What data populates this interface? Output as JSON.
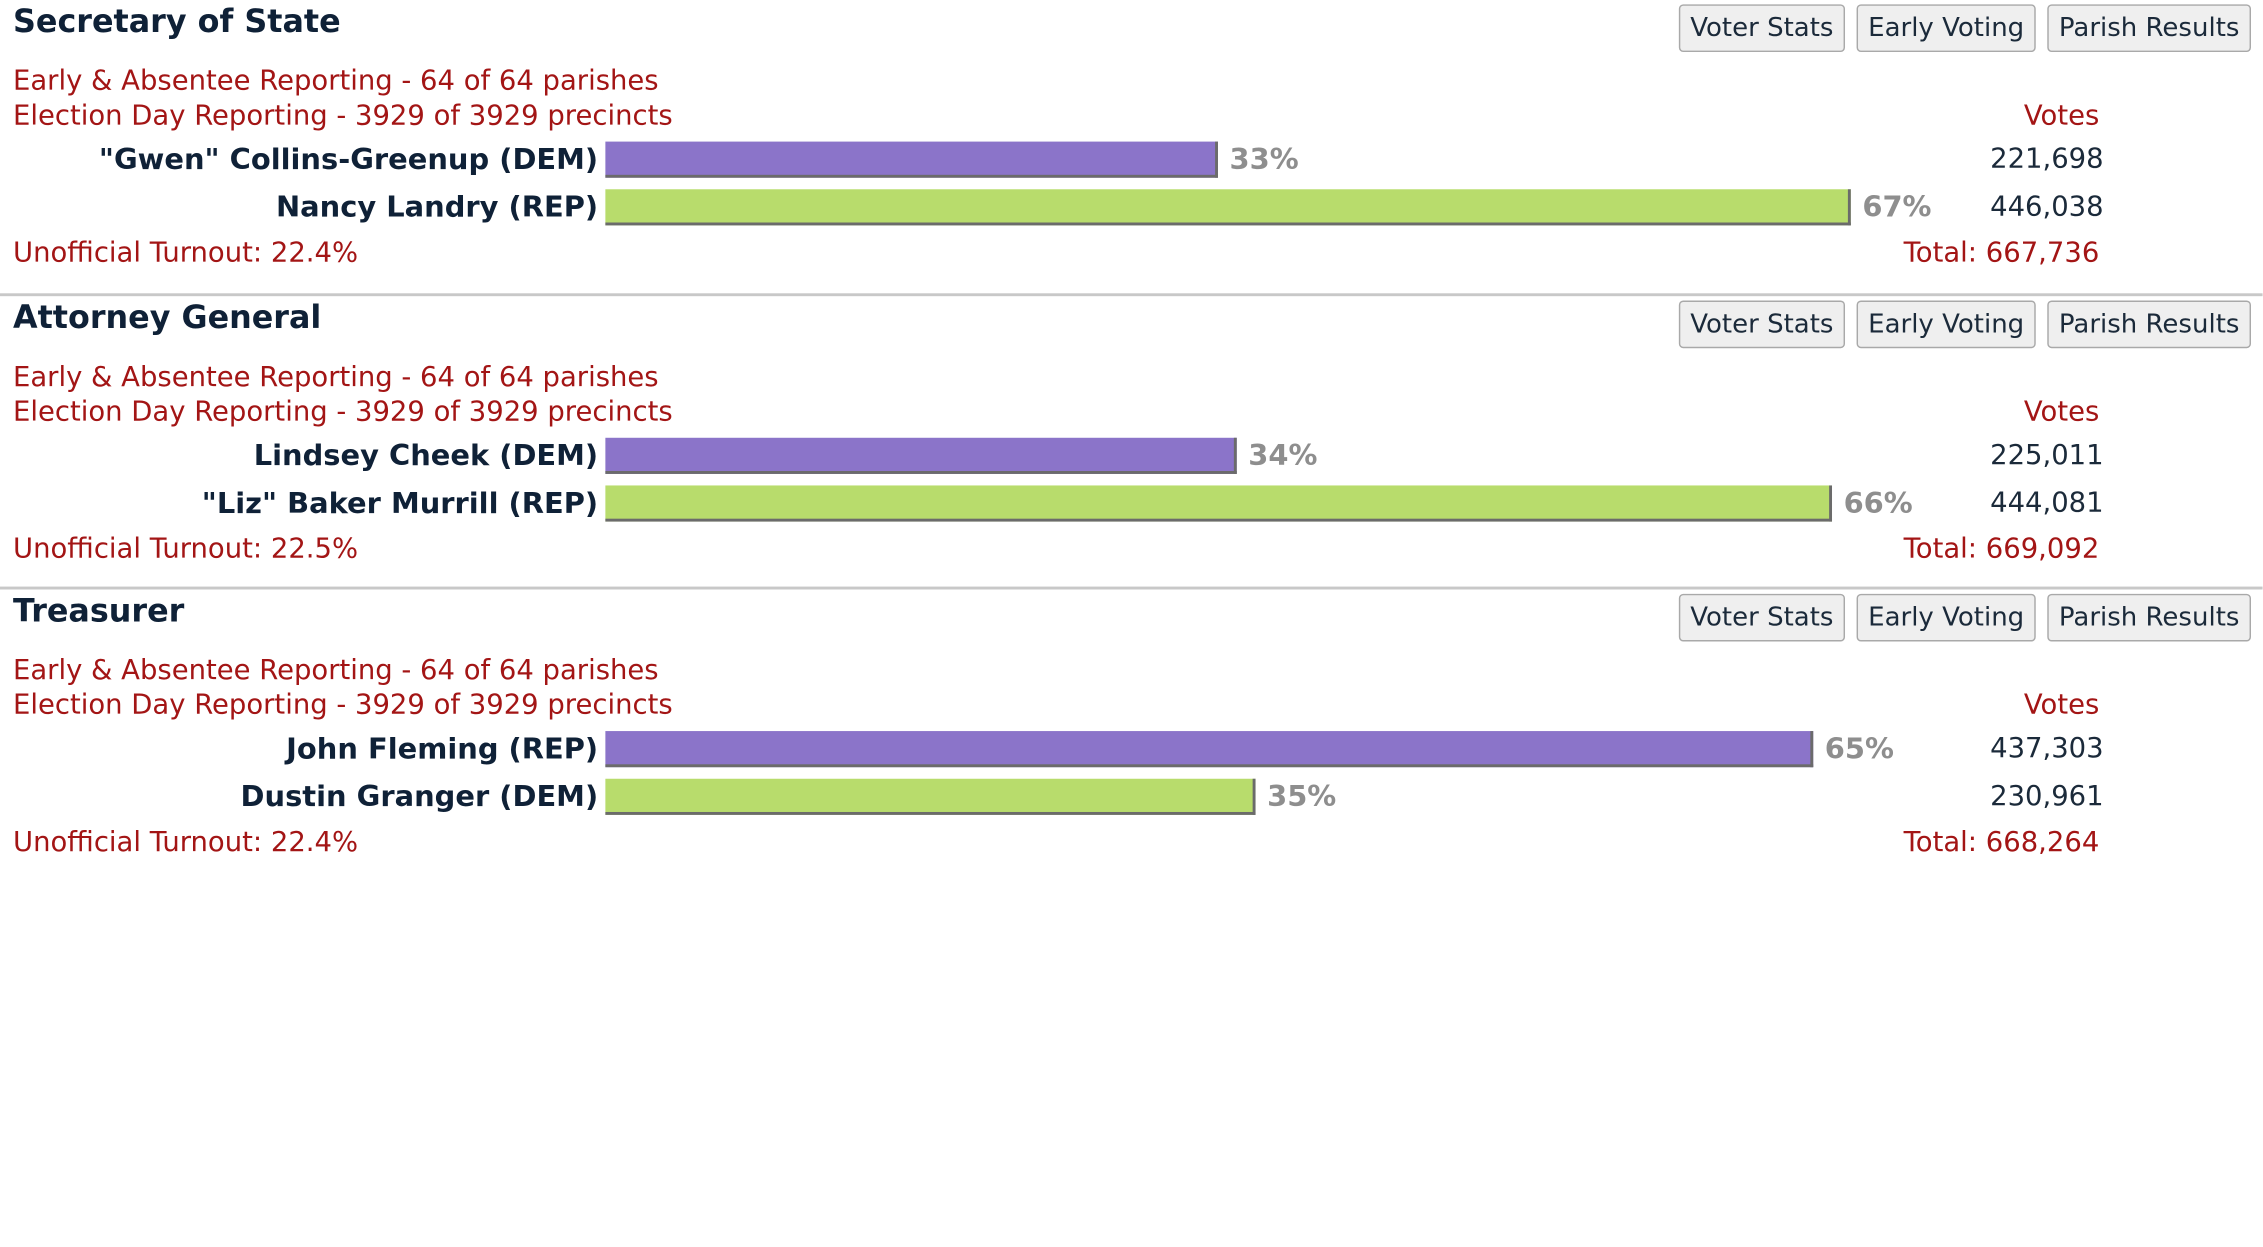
{
  "colors": {
    "bar_first": "#8b74c9",
    "bar_second": "#b8dc6c",
    "accent_red": "#a31515",
    "title_navy": "#0f2137"
  },
  "races": [
    {
      "title": "Secretary of State",
      "buttons": {
        "voter_stats": "Voter Stats",
        "early_voting": "Early Voting",
        "parish_results": "Parish Results"
      },
      "early_reporting": "Early & Absentee Reporting - 64 of 64 parishes",
      "eday_reporting": "Election Day Reporting - 3929 of 3929 precincts",
      "votes_header": "Votes",
      "candidates": [
        {
          "name": "\"Gwen\" Collins-Greenup (DEM)",
          "percent": 33,
          "percent_label": "33%",
          "votes": "221,698",
          "color": "#8b74c9"
        },
        {
          "name": "Nancy Landry (REP)",
          "percent": 67,
          "percent_label": "67%",
          "votes": "446,038",
          "color": "#b8dc6c"
        }
      ],
      "turnout": "Unofficial Turnout: 22.4%",
      "total": "Total: 667,736"
    },
    {
      "title": "Attorney General",
      "buttons": {
        "voter_stats": "Voter Stats",
        "early_voting": "Early Voting",
        "parish_results": "Parish Results"
      },
      "early_reporting": "Early & Absentee Reporting - 64 of 64 parishes",
      "eday_reporting": "Election Day Reporting - 3929 of 3929 precincts",
      "votes_header": "Votes",
      "candidates": [
        {
          "name": "Lindsey Cheek (DEM)",
          "percent": 34,
          "percent_label": "34%",
          "votes": "225,011",
          "color": "#8b74c9"
        },
        {
          "name": "\"Liz\" Baker Murrill (REP)",
          "percent": 66,
          "percent_label": "66%",
          "votes": "444,081",
          "color": "#b8dc6c"
        }
      ],
      "turnout": "Unofficial Turnout: 22.5%",
      "total": "Total: 669,092"
    },
    {
      "title": "Treasurer",
      "buttons": {
        "voter_stats": "Voter Stats",
        "early_voting": "Early Voting",
        "parish_results": "Parish Results"
      },
      "early_reporting": "Early & Absentee Reporting - 64 of 64 parishes",
      "eday_reporting": "Election Day Reporting - 3929 of 3929 precincts",
      "votes_header": "Votes",
      "candidates": [
        {
          "name": "John Fleming (REP)",
          "percent": 65,
          "percent_label": "65%",
          "votes": "437,303",
          "color": "#8b74c9"
        },
        {
          "name": "Dustin Granger (DEM)",
          "percent": 35,
          "percent_label": "35%",
          "votes": "230,961",
          "color": "#b8dc6c"
        }
      ],
      "turnout": "Unofficial Turnout: 22.4%",
      "total": "Total: 668,264"
    }
  ]
}
